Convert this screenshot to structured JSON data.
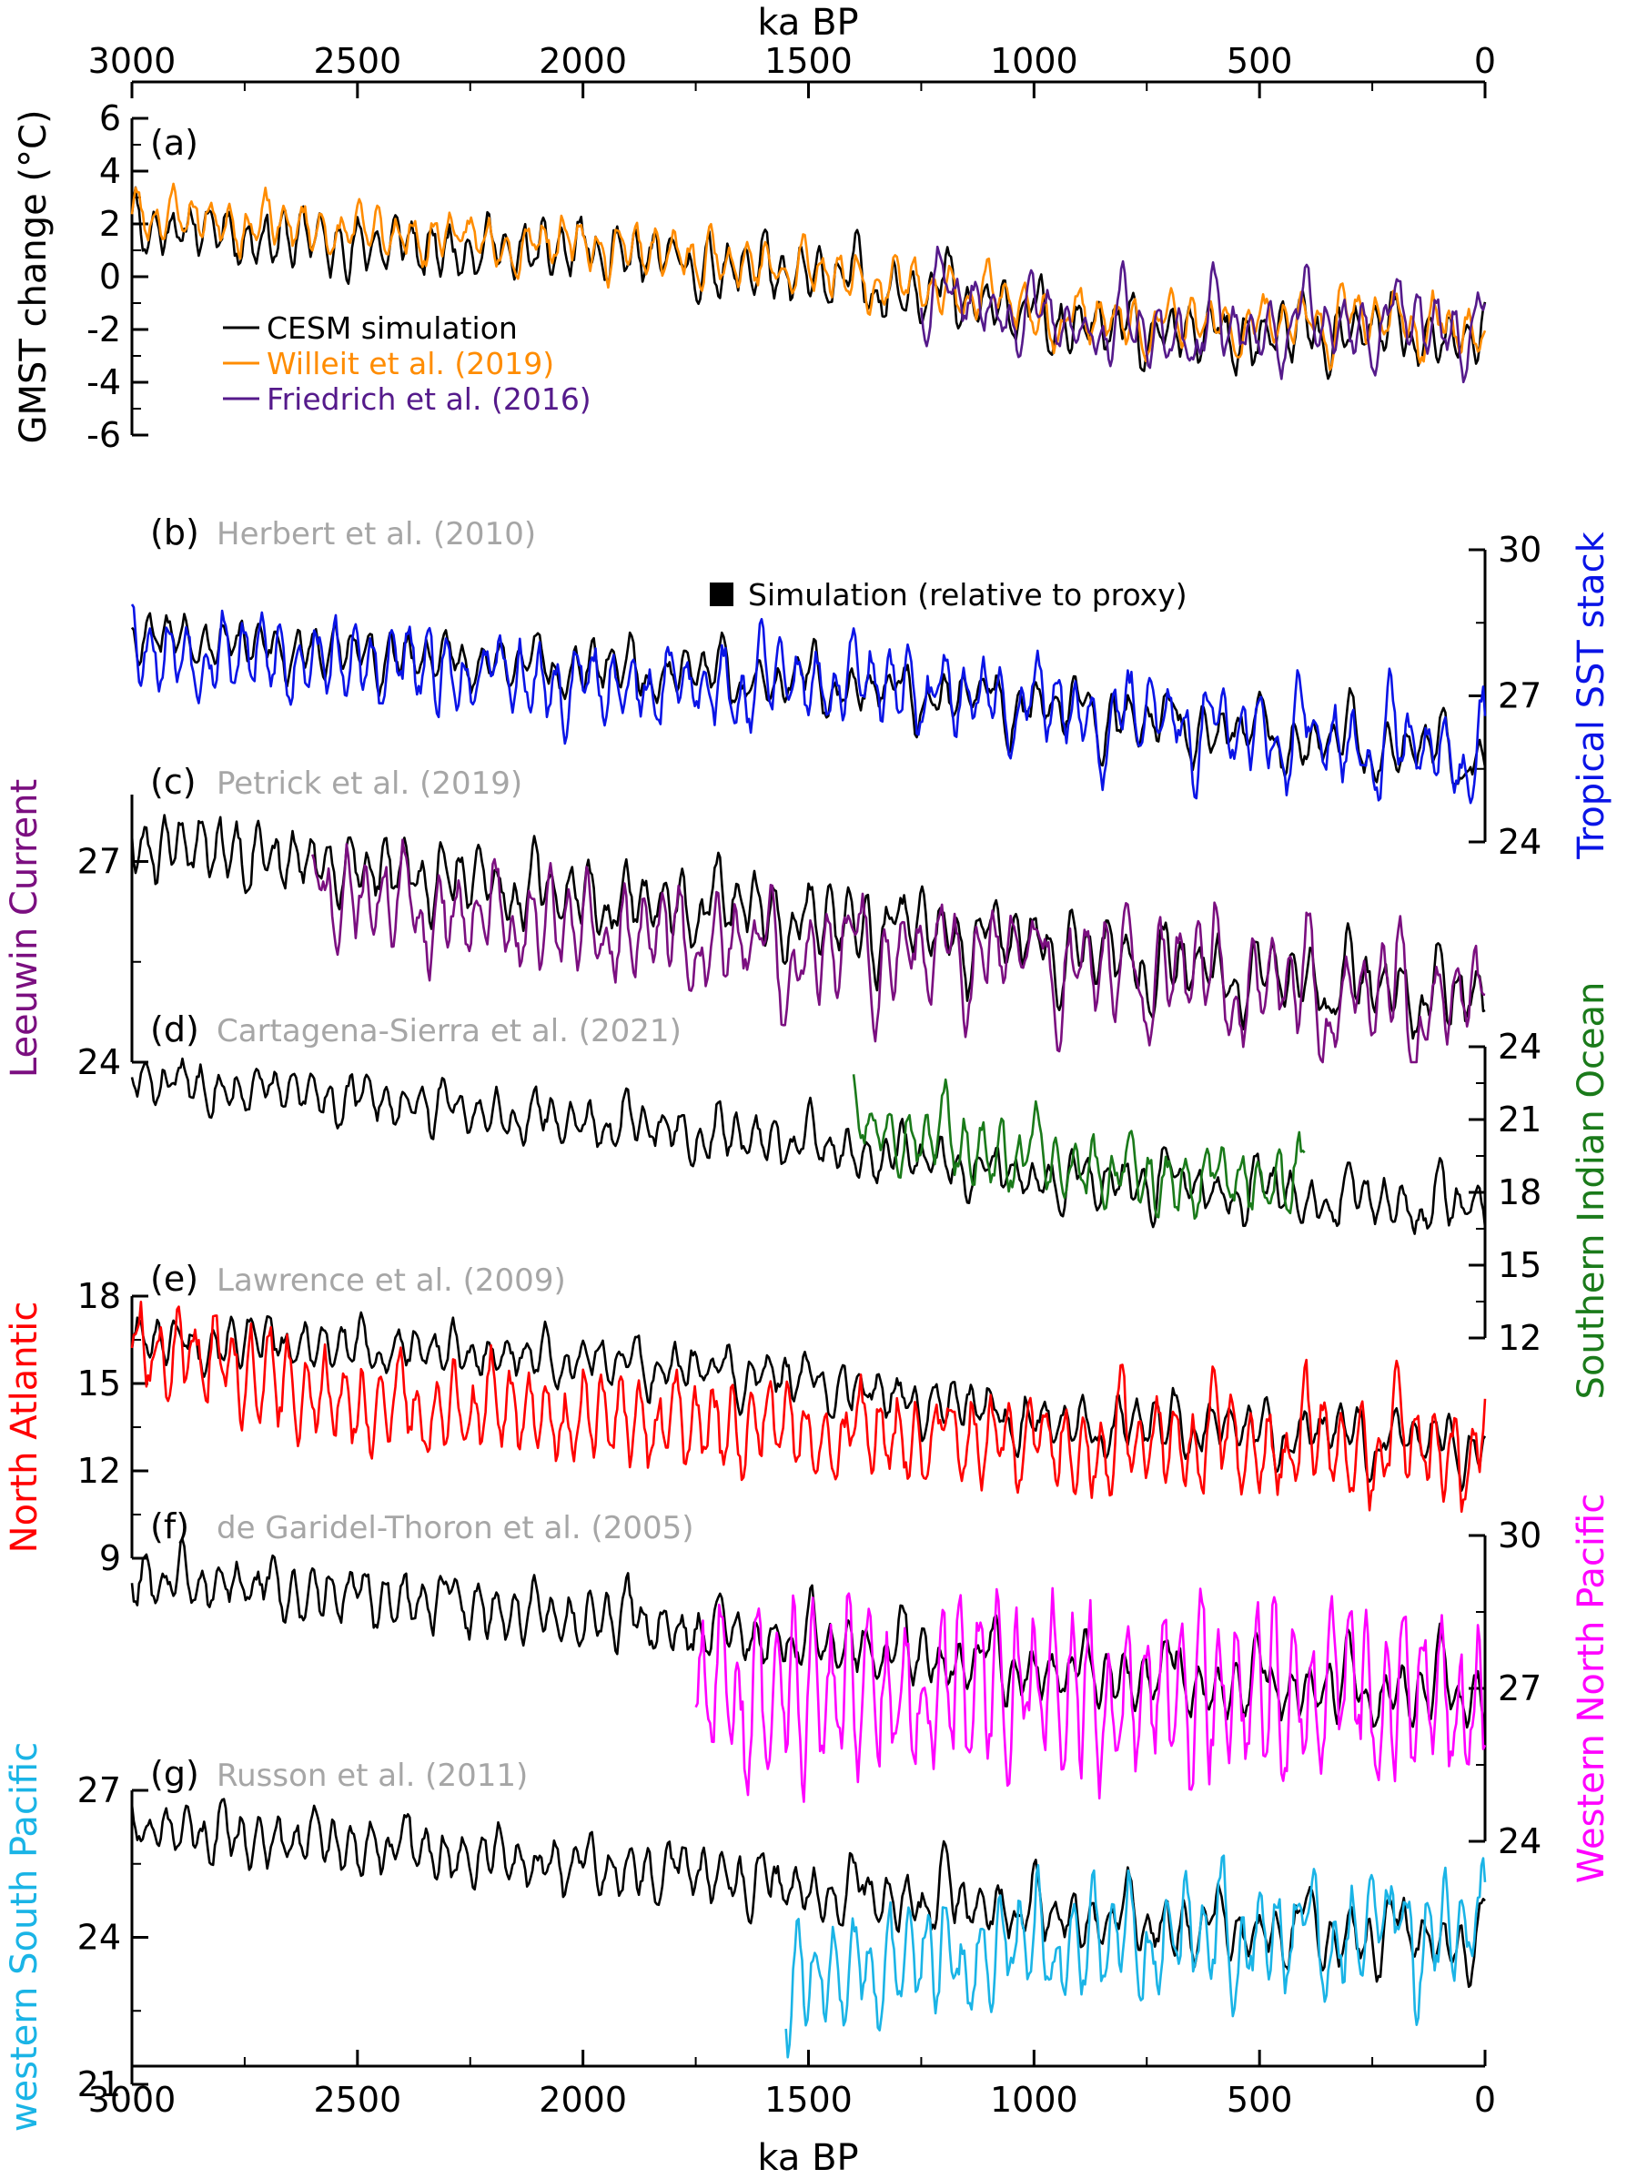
{
  "chart_data": {
    "type": "line",
    "x_axis": {
      "label": "ka BP",
      "ticks": [
        3000,
        2500,
        2000,
        1500,
        1000,
        500,
        0
      ],
      "range": [
        3000,
        0
      ],
      "direction": "reversed"
    },
    "legend": {
      "entries": [
        {
          "label": "CESM simulation",
          "color": "#000000"
        },
        {
          "label": "Willeit et al. (2019)",
          "color": "#ff8c00"
        },
        {
          "label": "Friedrich et al. (2016)",
          "color": "#551a8b"
        }
      ],
      "note": "Simulation (relative to proxy)"
    },
    "panels": [
      {
        "letter": "(a)",
        "citation": "",
        "ylabel": "GMST change (°C)",
        "ylim": [
          -6,
          6
        ],
        "yticks": [
          6,
          4,
          2,
          0,
          -2,
          -4,
          -6
        ],
        "axis_side": "left",
        "proxy_color": "#000000",
        "series": [
          {
            "name": "CESM simulation",
            "color": "#000000",
            "start_ka": 3000,
            "anchors": [
              [
                3000,
                2.0
              ],
              [
                2500,
                1.2
              ],
              [
                2000,
                0.9
              ],
              [
                1500,
                0.0
              ],
              [
                1200,
                -0.6
              ],
              [
                1000,
                -1.6
              ],
              [
                800,
                -2.2
              ],
              [
                500,
                -2.3
              ],
              [
                200,
                -2.1
              ],
              [
                0,
                -2.6
              ]
            ],
            "amp_short": 0.8,
            "amp_long": 1.3,
            "seed": 11
          },
          {
            "name": "Willeit et al. (2019)",
            "color": "#ff8c00",
            "start_ka": 3000,
            "anchors": [
              [
                3000,
                2.5
              ],
              [
                2500,
                1.7
              ],
              [
                2000,
                1.3
              ],
              [
                1500,
                0.3
              ],
              [
                1200,
                -0.4
              ],
              [
                1000,
                -1.2
              ],
              [
                800,
                -1.8
              ],
              [
                500,
                -1.7
              ],
              [
                200,
                -1.5
              ],
              [
                0,
                -2.2
              ]
            ],
            "amp_short": 0.7,
            "amp_long": 1.2,
            "seed": 23
          },
          {
            "name": "Friedrich et al. (2016)",
            "color": "#551a8b",
            "start_ka": 1250,
            "anchors": [
              [
                1250,
                -0.5
              ],
              [
                1000,
                -1.6
              ],
              [
                800,
                -2.2
              ],
              [
                500,
                -2.0
              ],
              [
                200,
                -1.8
              ],
              [
                0,
                -2.0
              ]
            ],
            "amp_short": 0.8,
            "amp_long": 2.1,
            "seed": 37
          }
        ]
      },
      {
        "letter": "(b)",
        "citation": "Herbert et al. (2010)",
        "ylabel": "Tropical SST stack",
        "ylim": [
          24,
          30
        ],
        "yticks": [
          30,
          27,
          24
        ],
        "axis_side": "right",
        "proxy_color": "#0a14e6",
        "series": [
          {
            "name": "CESM simulation",
            "color": "#000000",
            "start_ka": 3000,
            "anchors": [
              [
                3000,
                28.2
              ],
              [
                2500,
                27.9
              ],
              [
                2000,
                27.6
              ],
              [
                1500,
                27.3
              ],
              [
                1000,
                26.8
              ],
              [
                500,
                26.2
              ],
              [
                0,
                25.7
              ]
            ],
            "amp_short": 0.35,
            "amp_long": 0.9,
            "seed": 41
          },
          {
            "name": "Herbert et al. (2010)",
            "color": "#0a14e6",
            "start_ka": 3000,
            "anchors": [
              [
                3000,
                28.0
              ],
              [
                2500,
                27.7
              ],
              [
                2000,
                27.2
              ],
              [
                1500,
                27.3
              ],
              [
                1000,
                26.9
              ],
              [
                500,
                26.3
              ],
              [
                0,
                25.8
              ]
            ],
            "amp_short": 0.6,
            "amp_long": 1.0,
            "seed": 53
          }
        ]
      },
      {
        "letter": "(c)",
        "citation": "Petrick et al. (2019)",
        "ylabel": "Leeuwin Current",
        "ylim": [
          24,
          28
        ],
        "yticks": [
          27,
          24
        ],
        "axis_side": "left",
        "proxy_color": "#7b0f80",
        "series": [
          {
            "name": "CESM simulation",
            "color": "#000000",
            "start_ka": 3000,
            "anchors": [
              [
                3000,
                27.3
              ],
              [
                2500,
                26.9
              ],
              [
                2000,
                26.5
              ],
              [
                1500,
                26.2
              ],
              [
                1000,
                25.8
              ],
              [
                500,
                25.3
              ],
              [
                0,
                25.0
              ]
            ],
            "amp_short": 0.35,
            "amp_long": 0.8,
            "seed": 61
          },
          {
            "name": "Petrick et al. (2019)",
            "color": "#7b0f80",
            "start_ka": 2600,
            "anchors": [
              [
                2600,
                26.6
              ],
              [
                2000,
                26.0
              ],
              [
                1500,
                25.7
              ],
              [
                1000,
                25.6
              ],
              [
                500,
                25.2
              ],
              [
                0,
                24.9
              ]
            ],
            "amp_short": 0.5,
            "amp_long": 1.2,
            "seed": 71
          }
        ]
      },
      {
        "letter": "(d)",
        "citation": "Cartagena-Sierra et al. (2021)",
        "ylabel": "Southern Indian Ocean",
        "ylim": [
          12,
          24
        ],
        "yticks": [
          24,
          21,
          18,
          15,
          12
        ],
        "axis_side": "right",
        "proxy_color": "#1a7a1a",
        "series": [
          {
            "name": "CESM simulation",
            "color": "#000000",
            "start_ka": 3000,
            "anchors": [
              [
                3000,
                22.7
              ],
              [
                2500,
                21.8
              ],
              [
                2000,
                21.0
              ],
              [
                1500,
                20.0
              ],
              [
                1000,
                18.6
              ],
              [
                500,
                18.0
              ],
              [
                0,
                17.3
              ]
            ],
            "amp_short": 0.7,
            "amp_long": 1.4,
            "seed": 83
          },
          {
            "name": "Cartagena-Sierra et al. (2021)",
            "color": "#1a7a1a",
            "start_ka": 1400,
            "anchors": [
              [
                1400,
                21.0
              ],
              [
                1000,
                19.2
              ],
              [
                700,
                18.2
              ],
              [
                400,
                18.4
              ]
            ],
            "amp_short": 1.0,
            "amp_long": 1.6,
            "seed": 97,
            "end_ka": 400
          }
        ]
      },
      {
        "letter": "(e)",
        "citation": "Lawrence et al. (2009)",
        "ylabel": "North Atlantic",
        "ylim": [
          9,
          18
        ],
        "yticks": [
          18,
          15,
          12,
          9
        ],
        "axis_side": "left",
        "proxy_color": "#ff0000",
        "series": [
          {
            "name": "CESM simulation",
            "color": "#000000",
            "start_ka": 3000,
            "anchors": [
              [
                3000,
                16.6
              ],
              [
                2500,
                16.3
              ],
              [
                2000,
                15.9
              ],
              [
                1500,
                15.2
              ],
              [
                1000,
                13.8
              ],
              [
                500,
                13.5
              ],
              [
                0,
                13.0
              ]
            ],
            "amp_short": 0.6,
            "amp_long": 1.2,
            "seed": 101
          },
          {
            "name": "Lawrence et al. (2009)",
            "color": "#ff0000",
            "start_ka": 3000,
            "anchors": [
              [
                3000,
                16.5
              ],
              [
                2500,
                14.2
              ],
              [
                2000,
                13.8
              ],
              [
                1500,
                13.2
              ],
              [
                1000,
                13.0
              ],
              [
                500,
                12.8
              ],
              [
                0,
                12.6
              ]
            ],
            "amp_short": 1.2,
            "amp_long": 1.5,
            "seed": 113
          }
        ]
      },
      {
        "letter": "(f)",
        "citation": "de Garidel-Thoron et al. (2005)",
        "ylabel": "Western North Pacific",
        "ylim": [
          24,
          30
        ],
        "yticks": [
          30,
          27,
          24
        ],
        "axis_side": "right",
        "proxy_color": "#ff00ff",
        "series": [
          {
            "name": "CESM simulation",
            "color": "#000000",
            "start_ka": 3000,
            "anchors": [
              [
                3000,
                29.2
              ],
              [
                2500,
                28.8
              ],
              [
                2000,
                28.3
              ],
              [
                1500,
                27.9
              ],
              [
                1000,
                27.3
              ],
              [
                500,
                27.0
              ],
              [
                0,
                26.8
              ]
            ],
            "amp_short": 0.4,
            "amp_long": 0.9,
            "seed": 127
          },
          {
            "name": "de Garidel-Thoron et al. (2005)",
            "color": "#ff00ff",
            "start_ka": 1750,
            "anchors": [
              [
                1750,
                26.8
              ],
              [
                1500,
                27.0
              ],
              [
                1000,
                27.0
              ],
              [
                500,
                27.0
              ],
              [
                0,
                26.8
              ]
            ],
            "amp_short": 1.3,
            "amp_long": 0.7,
            "seed": 139
          }
        ]
      },
      {
        "letter": "(g)",
        "citation": "Russon et al. (2011)",
        "ylabel": "western South Pacific",
        "ylim": [
          21,
          27
        ],
        "yticks": [
          27,
          24,
          21
        ],
        "axis_side": "left",
        "proxy_color": "#1ab4e6",
        "series": [
          {
            "name": "CESM simulation",
            "color": "#000000",
            "start_ka": 3000,
            "anchors": [
              [
                3000,
                26.2
              ],
              [
                2500,
                25.8
              ],
              [
                2000,
                25.4
              ],
              [
                1500,
                25.0
              ],
              [
                1000,
                24.5
              ],
              [
                500,
                24.1
              ],
              [
                0,
                23.9
              ]
            ],
            "amp_short": 0.4,
            "amp_long": 0.9,
            "seed": 151
          },
          {
            "name": "Russon et al. (2011)",
            "color": "#1ab4e6",
            "start_ka": 1550,
            "anchors": [
              [
                1550,
                23.2
              ],
              [
                1200,
                23.6
              ],
              [
                1000,
                24.0
              ],
              [
                500,
                24.0
              ],
              [
                0,
                24.2
              ]
            ],
            "amp_short": 0.8,
            "amp_long": 1.1,
            "seed": 163
          }
        ]
      }
    ]
  }
}
